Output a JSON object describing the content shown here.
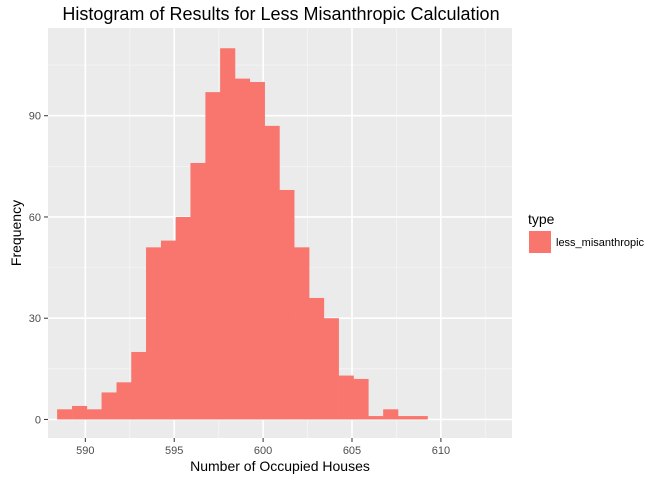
{
  "chart_data": {
    "type": "bar",
    "subtype": "histogram",
    "title": "Histogram of Results for Less Misanthropic Calculation",
    "xlabel": "Number of Occupied Houses",
    "ylabel": "Frequency",
    "xlim": [
      587.9,
      614.0
    ],
    "ylim": [
      -5.5,
      116
    ],
    "x_ticks": [
      590,
      595,
      600,
      605,
      610
    ],
    "y_ticks": [
      0,
      30,
      60,
      90
    ],
    "grid": true,
    "bin_width": 0.833,
    "bin_centers": [
      588.83,
      589.67,
      590.5,
      591.33,
      592.17,
      593.0,
      593.83,
      594.67,
      595.5,
      596.33,
      597.17,
      598.0,
      598.83,
      599.67,
      600.5,
      601.33,
      602.17,
      603.0,
      603.83,
      604.67,
      605.5,
      606.33,
      607.17,
      608.0,
      608.83,
      609.67,
      610.5,
      611.33,
      612.17,
      613.0
    ],
    "series": [
      {
        "name": "less_misanthropic",
        "color": "#f8766d",
        "values": [
          3,
          4,
          3,
          8,
          11,
          20,
          51,
          53,
          60,
          76,
          97,
          110,
          101,
          100,
          87,
          68,
          51,
          36,
          30,
          13,
          12,
          1,
          3,
          1,
          1,
          0,
          0,
          0,
          0,
          0
        ]
      }
    ],
    "legend": {
      "title": "type",
      "position": "right",
      "entries": [
        "less_misanthropic"
      ]
    },
    "panel_color": "#ebebeb"
  }
}
